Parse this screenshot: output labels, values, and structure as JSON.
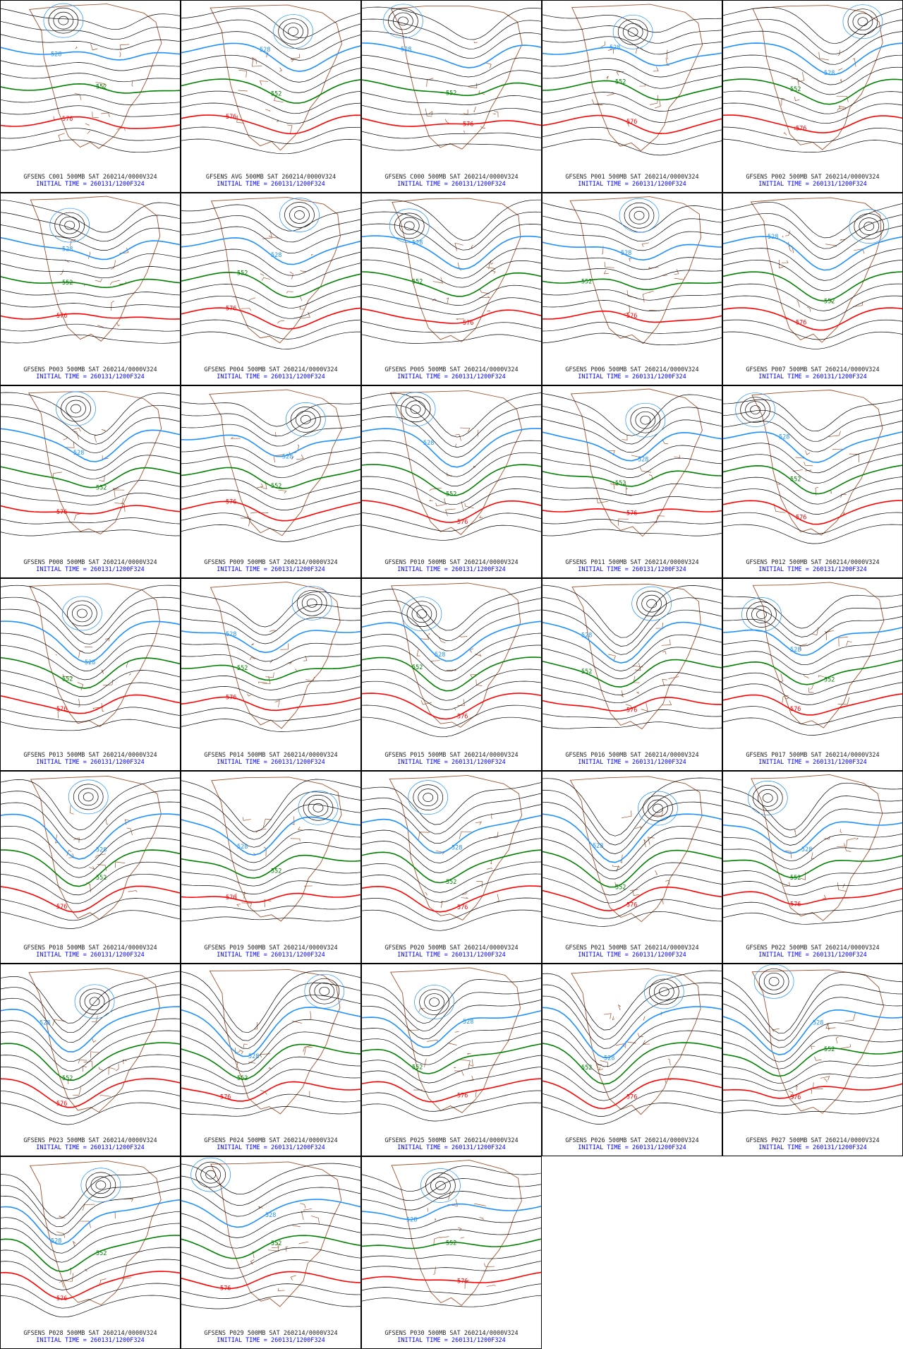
{
  "panels": [
    {
      "title": "GFSENS C001 500MB SAT 260214/0000V324"
    },
    {
      "title": "GFSENS AVG 500MB SAT 260214/0000V324"
    },
    {
      "title": "GFSENS C000 500MB SAT 260214/0000V324"
    },
    {
      "title": "GFSENS P001 500MB SAT 260214/0000V324"
    },
    {
      "title": "GFSENS P002 500MB SAT 260214/0000V324"
    },
    {
      "title": "GFSENS P003 500MB SAT 260214/0000V324"
    },
    {
      "title": "GFSENS P004 500MB SAT 260214/0000V324"
    },
    {
      "title": "GFSENS P005 500MB SAT 260214/0000V324"
    },
    {
      "title": "GFSENS P006 500MB SAT 260214/0000V324"
    },
    {
      "title": "GFSENS P007 500MB SAT 260214/0000V324"
    },
    {
      "title": "GFSENS P008 500MB SAT 260214/0000V324"
    },
    {
      "title": "GFSENS P009 500MB SAT 260214/0000V324"
    },
    {
      "title": "GFSENS P010 500MB SAT 260214/0000V324"
    },
    {
      "title": "GFSENS P011 500MB SAT 260214/0000V324"
    },
    {
      "title": "GFSENS P012 500MB SAT 260214/0000V324"
    },
    {
      "title": "GFSENS P013 500MB SAT 260214/0000V324"
    },
    {
      "title": "GFSENS P014 500MB SAT 260214/0000V324"
    },
    {
      "title": "GFSENS P015 500MB SAT 260214/0000V324"
    },
    {
      "title": "GFSENS P016 500MB SAT 260214/0000V324"
    },
    {
      "title": "GFSENS P017 500MB SAT 260214/0000V324"
    },
    {
      "title": "GFSENS P018 500MB SAT 260214/0000V324"
    },
    {
      "title": "GFSENS P019 500MB SAT 260214/0000V324"
    },
    {
      "title": "GFSENS P020 500MB SAT 260214/0000V324"
    },
    {
      "title": "GFSENS P021 500MB SAT 260214/0000V324"
    },
    {
      "title": "GFSENS P022 500MB SAT 260214/0000V324"
    },
    {
      "title": "GFSENS P023 500MB SAT 260214/0000V324"
    },
    {
      "title": "GFSENS P024 500MB SAT 260214/0000V324"
    },
    {
      "title": "GFSENS P025 500MB SAT 260214/0000V324"
    },
    {
      "title": "GFSENS P026 500MB SAT 260214/0000V324"
    },
    {
      "title": "GFSENS P027 500MB SAT 260214/0000V324"
    },
    {
      "title": "GFSENS P028 500MB SAT 260214/0000V324"
    },
    {
      "title": "GFSENS P029 500MB SAT 260214/0000V324"
    },
    {
      "title": "GFSENS P030 500MB SAT 260214/0000V324"
    }
  ],
  "initial_time": "INITIAL TIME = 260131/1200F324",
  "contour_labels": [
    "528",
    "552",
    "576"
  ]
}
